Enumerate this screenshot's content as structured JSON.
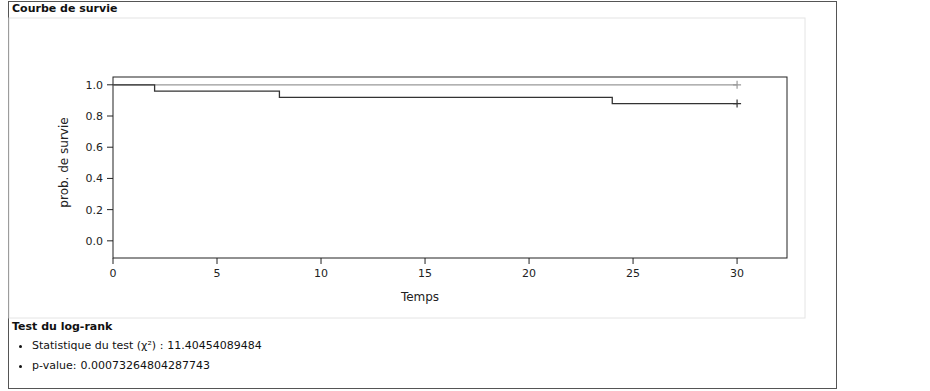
{
  "chart_data": {
    "type": "step",
    "title": "Courbe de survie",
    "x_label": "Temps",
    "y_label": "prob. de survie",
    "xlim": [
      0,
      32.4
    ],
    "ylim": [
      -0.11,
      1.05
    ],
    "xticks": [
      0,
      5,
      10,
      15,
      20,
      25,
      30
    ],
    "yticks": [
      {
        "value": 0,
        "label": "0.0"
      },
      {
        "value": 0.2,
        "label": "0.2"
      },
      {
        "value": 0.4,
        "label": "0.4"
      },
      {
        "value": 0.6,
        "label": "0.6"
      },
      {
        "value": 0.8,
        "label": "0.8"
      },
      {
        "value": 1,
        "label": "1.0"
      }
    ],
    "grid": false,
    "series": [
      {
        "color": "#999999",
        "x": [
          0,
          30
        ],
        "values": [
          1,
          1
        ],
        "censor_x": [
          30
        ],
        "marker": "plus"
      },
      {
        "color": "#333333",
        "x": [
          0,
          2,
          8,
          24,
          30
        ],
        "values": [
          1,
          0.96,
          0.92,
          0.88,
          0.88
        ],
        "censor_x": [
          30
        ],
        "marker": "plus"
      }
    ],
    "annotations": {
      "heading": "Test du log-rank",
      "items": [
        {
          "label": "Statistique du test (χ²) :",
          "value": 11.40454089484
        },
        {
          "label": "p-value:",
          "value": 0.00073264804287743
        }
      ]
    }
  }
}
